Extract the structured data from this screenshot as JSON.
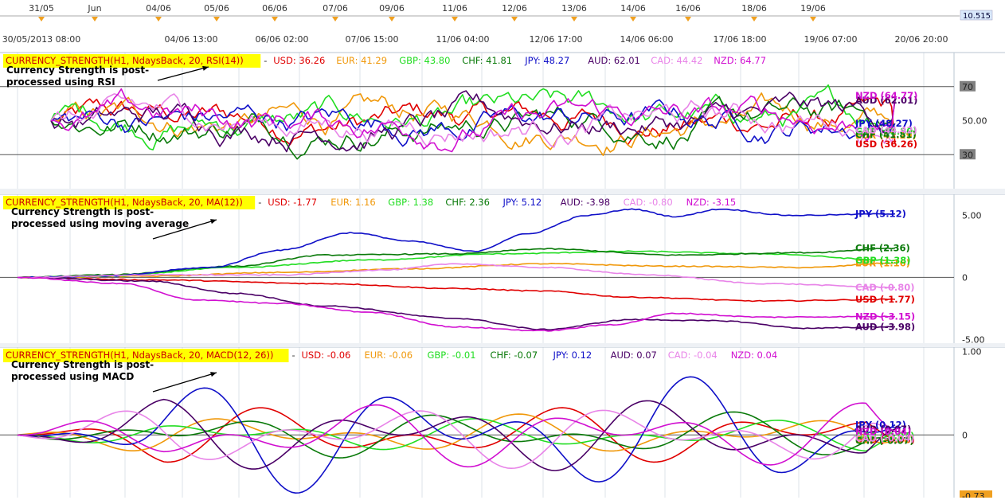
{
  "colors": {
    "USD": "#e00000",
    "EUR": "#f0980a",
    "GBP": "#22dd22",
    "CHF": "#0a7a0a",
    "JPY": "#1010c8",
    "AUD": "#4a0066",
    "CAD": "#e884e8",
    "NZD": "#d10fd1",
    "grid": "#dde3ea",
    "level_line": "#555555",
    "header_box": "#ffff00",
    "axis_box": "#808080",
    "price_box": "#d9e8fb"
  },
  "top_axis": {
    "date_labels": [
      "31/05",
      "Jun",
      "04/06",
      "05/06",
      "06/06",
      "07/06",
      "09/06",
      "11/06",
      "12/06",
      "13/06",
      "14/06",
      "16/06",
      "18/06",
      "19/06"
    ],
    "time_labels": [
      "30/05/2013 08:00",
      "04/06 13:00",
      "06/06 02:00",
      "07/06 15:00",
      "11/06 04:00",
      "12/06 17:00",
      "14/06 06:00",
      "17/06 18:00",
      "19/06 07:00",
      "20/06 20:00"
    ],
    "price_box": "10.515"
  },
  "chart_data": [
    {
      "type": "line",
      "title": "CURRENCY_STRENGTH(H1, NdaysBack, 20, RSI(14))",
      "annotation": [
        "Currency Strength is post-",
        "processed using RSI"
      ],
      "ylim": [
        10,
        90
      ],
      "y_axis_ticks": [
        {
          "value": 70,
          "label": "70",
          "boxed": true
        },
        {
          "value": 50,
          "label": "50.00",
          "boxed": false
        },
        {
          "value": 30,
          "label": "30",
          "boxed": true
        }
      ],
      "level_lines": [
        70,
        30
      ],
      "series": [
        {
          "name": "USD",
          "value": 36.26,
          "value_label": "36.26",
          "start": 50
        },
        {
          "name": "EUR",
          "value": 41.29,
          "value_label": "41.29",
          "start": 50
        },
        {
          "name": "GBP",
          "value": 43.8,
          "value_label": "43.80",
          "start": 50
        },
        {
          "name": "CHF",
          "value": 41.81,
          "value_label": "41.81",
          "start": 50
        },
        {
          "name": "JPY",
          "value": 48.27,
          "value_label": "48.27",
          "start": 50
        },
        {
          "name": "AUD",
          "value": 62.01,
          "value_label": "62.01",
          "start": 50
        },
        {
          "name": "CAD",
          "value": 44.42,
          "value_label": "44.42",
          "start": 50
        },
        {
          "name": "NZD",
          "value": 64.77,
          "value_label": "64.77",
          "start": 50
        }
      ]
    },
    {
      "type": "line",
      "title": "CURRENCY_STRENGTH(H1, NdaysBack, 20, MA(12))",
      "annotation": [
        "Currency Strength is post-",
        "processed using moving average"
      ],
      "ylim": [
        -5.3,
        6.7
      ],
      "y_axis_ticks": [
        {
          "value": 5,
          "label": "5.00",
          "boxed": false
        },
        {
          "value": 0,
          "label": "0",
          "boxed": false
        },
        {
          "value": -5,
          "label": "-5.00",
          "boxed": false
        }
      ],
      "level_lines": [
        0
      ],
      "series": [
        {
          "name": "USD",
          "value": -1.77,
          "value_label": "-1.77",
          "keypoints": [
            [
              0,
              0
            ],
            [
              0.15,
              -0.2
            ],
            [
              0.35,
              -0.5
            ],
            [
              0.5,
              -0.9
            ],
            [
              0.6,
              -1.1
            ],
            [
              0.7,
              -1.6
            ],
            [
              0.85,
              -1.9
            ],
            [
              1,
              -1.77
            ]
          ]
        },
        {
          "name": "EUR",
          "value": 1.16,
          "value_label": "1.16",
          "keypoints": [
            [
              0,
              0
            ],
            [
              0.15,
              0.1
            ],
            [
              0.3,
              0.4
            ],
            [
              0.45,
              0.7
            ],
            [
              0.6,
              1.1
            ],
            [
              0.75,
              0.9
            ],
            [
              0.9,
              0.8
            ],
            [
              1,
              1.16
            ]
          ]
        },
        {
          "name": "GBP",
          "value": 1.38,
          "value_label": "1.38",
          "keypoints": [
            [
              0,
              0
            ],
            [
              0.1,
              0.1
            ],
            [
              0.25,
              0.8
            ],
            [
              0.4,
              1.4
            ],
            [
              0.55,
              1.9
            ],
            [
              0.7,
              2.1
            ],
            [
              0.85,
              1.9
            ],
            [
              1,
              1.38
            ]
          ]
        },
        {
          "name": "CHF",
          "value": 2.36,
          "value_label": "2.36",
          "keypoints": [
            [
              0,
              0
            ],
            [
              0.1,
              0.2
            ],
            [
              0.25,
              0.9
            ],
            [
              0.35,
              1.8
            ],
            [
              0.5,
              1.9
            ],
            [
              0.6,
              2.3
            ],
            [
              0.75,
              1.8
            ],
            [
              0.9,
              2
            ],
            [
              1,
              2.36
            ]
          ]
        },
        {
          "name": "JPY",
          "value": 5.12,
          "value_label": "5.12",
          "keypoints": [
            [
              0,
              0
            ],
            [
              0.1,
              0.1
            ],
            [
              0.22,
              0.8
            ],
            [
              0.3,
              2.2
            ],
            [
              0.38,
              3.6
            ],
            [
              0.45,
              2.9
            ],
            [
              0.52,
              2.1
            ],
            [
              0.58,
              3.5
            ],
            [
              0.65,
              5.0
            ],
            [
              0.7,
              5.5
            ],
            [
              0.75,
              4.9
            ],
            [
              0.8,
              5.5
            ],
            [
              0.88,
              5.0
            ],
            [
              1,
              5.12
            ]
          ]
        },
        {
          "name": "AUD",
          "value": -3.98,
          "value_label": "-3.98",
          "keypoints": [
            [
              0,
              0
            ],
            [
              0.15,
              -0.3
            ],
            [
              0.25,
              -1.3
            ],
            [
              0.35,
              -2.3
            ],
            [
              0.5,
              -3.3
            ],
            [
              0.6,
              -4.2
            ],
            [
              0.7,
              -3.4
            ],
            [
              0.8,
              -3.5
            ],
            [
              0.9,
              -4.1
            ],
            [
              1,
              -3.98
            ]
          ]
        },
        {
          "name": "CAD",
          "value": -0.8,
          "value_label": "-0.80",
          "keypoints": [
            [
              0,
              0
            ],
            [
              0.15,
              0.2
            ],
            [
              0.3,
              0.2
            ],
            [
              0.42,
              0.6
            ],
            [
              0.5,
              1.1
            ],
            [
              0.6,
              0.8
            ],
            [
              0.72,
              0.2
            ],
            [
              0.85,
              -0.5
            ],
            [
              1,
              -0.8
            ]
          ]
        },
        {
          "name": "NZD",
          "value": -3.15,
          "value_label": "-3.15",
          "keypoints": [
            [
              0,
              0
            ],
            [
              0.12,
              -0.5
            ],
            [
              0.2,
              -1.8
            ],
            [
              0.3,
              -2.1
            ],
            [
              0.4,
              -2.8
            ],
            [
              0.5,
              -4.0
            ],
            [
              0.6,
              -4.3
            ],
            [
              0.68,
              -3.8
            ],
            [
              0.75,
              -2.9
            ],
            [
              0.85,
              -3.2
            ],
            [
              1,
              -3.15
            ]
          ]
        }
      ]
    },
    {
      "type": "line",
      "title": "CURRENCY_STRENGTH(H1, NdaysBack, 20, MACD(12, 26))",
      "annotation": [
        "Currency Strength is post-",
        "processed using MACD"
      ],
      "ylim": [
        -0.75,
        1.05
      ],
      "y_axis_ticks": [
        {
          "value": 1,
          "label": "1.00",
          "boxed": false
        },
        {
          "value": 0,
          "label": "0",
          "boxed": false
        },
        {
          "value": -0.73,
          "label": "-0.73",
          "boxed": true
        }
      ],
      "level_lines": [
        0
      ],
      "series": [
        {
          "name": "USD",
          "value": -0.06,
          "value_label": "-0.06",
          "amplitude": 0.35
        },
        {
          "name": "EUR",
          "value": -0.06,
          "value_label": "-0.06",
          "amplitude": 0.25
        },
        {
          "name": "GBP",
          "value": -0.01,
          "value_label": "-0.01",
          "amplitude": 0.2
        },
        {
          "name": "CHF",
          "value": -0.07,
          "value_label": "-0.07",
          "amplitude": 0.28
        },
        {
          "name": "JPY",
          "value": 0.12,
          "value_label": "0.12",
          "amplitude": 0.7
        },
        {
          "name": "AUD",
          "value": 0.07,
          "value_label": "0.07",
          "amplitude": 0.45
        },
        {
          "name": "CAD",
          "value": -0.04,
          "value_label": "-0.04",
          "amplitude": 0.4
        },
        {
          "name": "NZD",
          "value": 0.04,
          "value_label": "0.04",
          "amplitude": 0.4
        }
      ]
    }
  ]
}
